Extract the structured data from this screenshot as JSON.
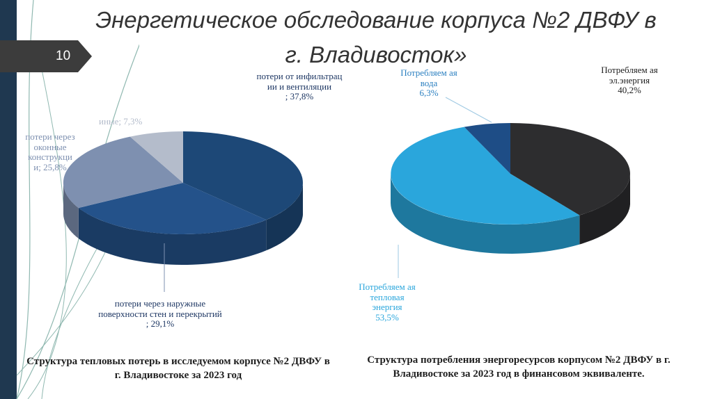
{
  "slide": {
    "number": "10",
    "title": "Энергетическое обследование корпуса №2 ДВФУ в г. Владивосток»"
  },
  "colors": {
    "sidebar": "#1f3850",
    "badge": "#3c3c3c",
    "deco_line": "#8fb8b0"
  },
  "chart_data": [
    {
      "type": "pie",
      "title": "Структура тепловых потерь в исследуемом корпусе №2 ДВФУ в г. Владивостоке за 2023 год",
      "slices": [
        {
          "label": "потери от инфильтрац ии и вентиляции",
          "value": 37.8,
          "value_text": "; 37,8%",
          "color": "#1d4877"
        },
        {
          "label": "потери через наружные поверхности стен и перекрытий",
          "value": 29.1,
          "value_text": "; 29,1%",
          "color": "#24528a"
        },
        {
          "label": "потери через оконные конструкци",
          "value": 25.8,
          "value_text": "и; 25,8%",
          "color": "#7e90b0"
        },
        {
          "label": "иные",
          "value": 7.3,
          "value_text": "; 7,3%",
          "color": "#b4bccb"
        }
      ],
      "label_color": "#1f3864"
    },
    {
      "type": "pie",
      "title": "Структура потребления энергоресурсов корпусом №2 ДВФУ в г. Владивостоке за 2023 год в финансовом эквиваленте.",
      "slices": [
        {
          "label": "Потребляем ая эл.энергия",
          "value": 40.2,
          "value_text": "40,2%",
          "color": "#2d2d2f",
          "label_color": "#1e1e1e"
        },
        {
          "label": "Потребляем ая тепловая энергия",
          "value": 53.5,
          "value_text": "53,5%",
          "color": "#2aa6dc",
          "label_color": "#2aa6dc"
        },
        {
          "label": "Потребляем ая вода",
          "value": 6.3,
          "value_text": "6,3%",
          "color": "#1e4d86",
          "label_color": "#2a7fc0"
        }
      ]
    }
  ]
}
